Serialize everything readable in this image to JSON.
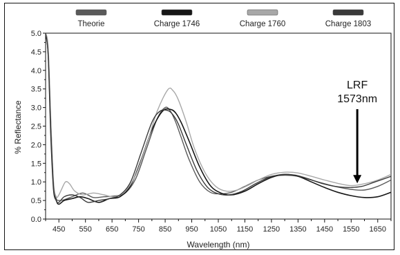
{
  "chart_data": {
    "type": "line",
    "xlabel": "Wavelength (nm)",
    "ylabel": "% Reflectance",
    "xlim": [
      400,
      1700
    ],
    "ylim": [
      0,
      5
    ],
    "x_ticks": [
      450,
      550,
      650,
      750,
      850,
      950,
      1050,
      1150,
      1250,
      1350,
      1450,
      1550,
      1650
    ],
    "y_ticks": [
      "0.0",
      "0.5",
      "1.0",
      "1.5",
      "2.0",
      "2.5",
      "3.0",
      "3.5",
      "4.0",
      "4.5",
      "5.0"
    ],
    "legend_position": "top",
    "annotation": {
      "line1": "LRF",
      "line2": "1573nm",
      "x": 1573,
      "y": 0.85
    },
    "series": [
      {
        "name": "Theorie",
        "color": "#5a5a5a",
        "width": 1.4,
        "x": [
          400,
          410,
          420,
          430,
          440,
          450,
          470,
          500,
          540,
          580,
          620,
          660,
          700,
          740,
          780,
          820,
          850,
          870,
          890,
          910,
          940,
          980,
          1020,
          1060,
          1100,
          1150,
          1200,
          1250,
          1300,
          1350,
          1400,
          1450,
          1500,
          1550,
          1600,
          1650,
          1700
        ],
        "y": [
          5.0,
          4.5,
          2.5,
          0.9,
          0.55,
          0.5,
          0.52,
          0.6,
          0.7,
          0.58,
          0.6,
          0.62,
          0.7,
          1.1,
          1.9,
          2.7,
          3.0,
          2.9,
          2.6,
          2.2,
          1.6,
          1.0,
          0.72,
          0.68,
          0.72,
          0.88,
          1.05,
          1.15,
          1.18,
          1.15,
          1.05,
          0.95,
          0.86,
          0.8,
          0.78,
          0.88,
          1.05
        ]
      },
      {
        "name": "Charge 1746",
        "color": "#161616",
        "width": 1.6,
        "x": [
          400,
          410,
          420,
          430,
          440,
          450,
          470,
          500,
          530,
          560,
          600,
          640,
          680,
          720,
          760,
          800,
          840,
          870,
          890,
          910,
          940,
          980,
          1020,
          1060,
          1100,
          1150,
          1200,
          1250,
          1300,
          1350,
          1400,
          1450,
          1500,
          1550,
          1600,
          1650,
          1700
        ],
        "y": [
          5.0,
          4.4,
          2.2,
          0.8,
          0.5,
          0.4,
          0.5,
          0.55,
          0.6,
          0.55,
          0.45,
          0.55,
          0.6,
          0.9,
          1.6,
          2.4,
          2.9,
          2.95,
          2.85,
          2.6,
          2.1,
          1.4,
          0.9,
          0.7,
          0.65,
          0.75,
          0.95,
          1.12,
          1.2,
          1.15,
          1.0,
          0.85,
          0.72,
          0.63,
          0.58,
          0.6,
          0.72
        ]
      },
      {
        "name": "Charge 1760",
        "color": "#a8a8a8",
        "width": 1.4,
        "x": [
          400,
          410,
          420,
          430,
          440,
          450,
          460,
          475,
          490,
          510,
          540,
          580,
          620,
          660,
          700,
          740,
          780,
          820,
          860,
          880,
          900,
          930,
          960,
          1000,
          1040,
          1080,
          1120,
          1160,
          1200,
          1250,
          1300,
          1350,
          1400,
          1450,
          1500,
          1550,
          1600,
          1650,
          1700
        ],
        "y": [
          5.0,
          4.6,
          2.6,
          1.0,
          0.6,
          0.65,
          0.8,
          1.0,
          0.95,
          0.75,
          0.65,
          0.7,
          0.65,
          0.6,
          0.75,
          1.2,
          2.0,
          2.9,
          3.48,
          3.45,
          3.2,
          2.6,
          1.9,
          1.25,
          0.88,
          0.75,
          0.78,
          0.9,
          1.05,
          1.2,
          1.26,
          1.24,
          1.15,
          1.05,
          0.96,
          0.9,
          0.95,
          1.05,
          1.2
        ]
      },
      {
        "name": "Charge 1803",
        "color": "#3a3a3a",
        "width": 1.4,
        "x": [
          400,
          410,
          420,
          430,
          440,
          450,
          470,
          500,
          530,
          560,
          600,
          640,
          680,
          720,
          760,
          800,
          830,
          860,
          880,
          900,
          930,
          970,
          1010,
          1050,
          1090,
          1140,
          1190,
          1240,
          1290,
          1340,
          1390,
          1440,
          1490,
          1540,
          1590,
          1640,
          1700
        ],
        "y": [
          5.0,
          4.4,
          2.3,
          0.85,
          0.5,
          0.45,
          0.6,
          0.65,
          0.58,
          0.45,
          0.5,
          0.55,
          0.65,
          1.0,
          1.8,
          2.6,
          2.9,
          2.92,
          2.8,
          2.55,
          2.0,
          1.3,
          0.85,
          0.68,
          0.65,
          0.75,
          0.95,
          1.12,
          1.2,
          1.18,
          1.08,
          0.96,
          0.88,
          0.85,
          0.88,
          1.0,
          1.15
        ]
      }
    ]
  }
}
